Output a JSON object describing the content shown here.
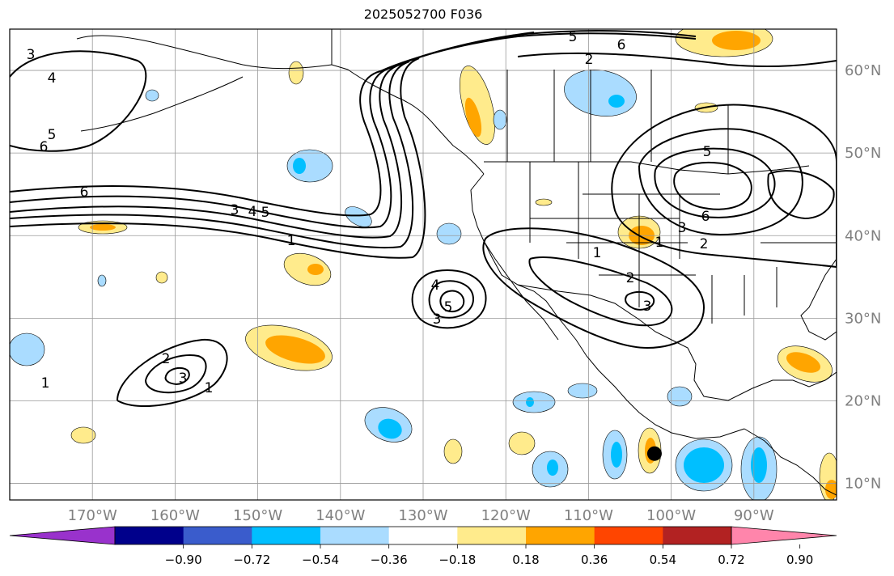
{
  "title": "2025052700 F036",
  "map": {
    "lon_range": [
      -180,
      -80
    ],
    "lat_range": [
      8,
      65
    ],
    "lon_ticks": [
      "170°W",
      "160°W",
      "150°W",
      "140°W",
      "130°W",
      "120°W",
      "110°W",
      "100°W",
      "90°W"
    ],
    "lat_ticks": [
      "60°N",
      "50°N",
      "40°N",
      "30°N",
      "20°N",
      "10°N"
    ],
    "gridlines": true
  },
  "contours": {
    "color": "#000000",
    "labels": [
      "3",
      "4",
      "5",
      "6",
      "6",
      "5",
      "6",
      "2",
      "3",
      "4",
      "5",
      "1",
      "4",
      "5",
      "3",
      "2",
      "3",
      "1",
      "1",
      "1",
      "2",
      "3",
      "5",
      "6",
      "3",
      "2",
      "1"
    ]
  },
  "shading": {
    "colors": {
      "neg_strong": "#00bfff",
      "neg_weak": "#aadcff",
      "pos_weak": "#ffeb8c",
      "pos_strong": "#ffa500"
    }
  },
  "storm_marker": {
    "color": "#000000",
    "lon": -103,
    "lat": 14
  },
  "colorbar": {
    "colors": [
      "#9932cc",
      "#00008b",
      "#3a5ccc",
      "#00bfff",
      "#aadcff",
      "#ffffff",
      "#ffeb8c",
      "#ffa500",
      "#ff4500",
      "#b22222",
      "#ff85ab"
    ],
    "tick_labels": [
      "−0.90",
      "−0.72",
      "−0.54",
      "−0.36",
      "−0.18",
      "0.18",
      "0.36",
      "0.54",
      "0.72",
      "0.90"
    ]
  }
}
